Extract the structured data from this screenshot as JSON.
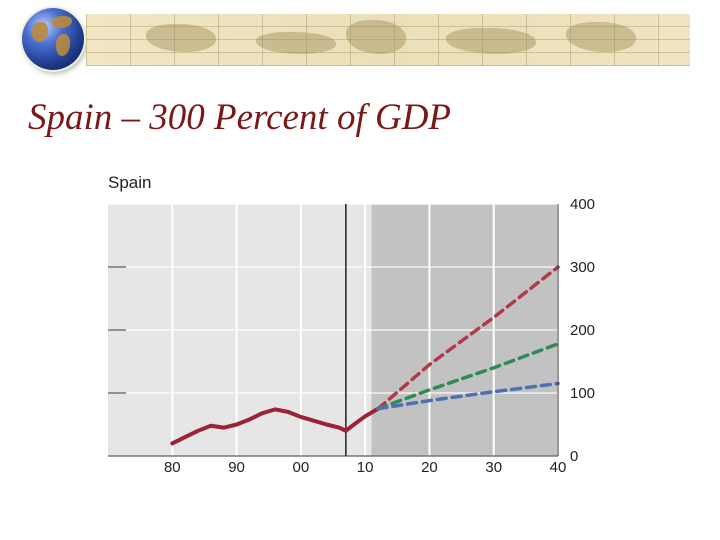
{
  "slide": {
    "title": "Spain – 300 Percent of GDP"
  },
  "header": {
    "icon": "globe-icon",
    "banner": "world-map-banner"
  },
  "chart_data": {
    "type": "line",
    "title": "Spain",
    "xlabel": "",
    "ylabel": "",
    "x_ticks": [
      "80",
      "90",
      "00",
      "10",
      "20",
      "30",
      "40"
    ],
    "x_tick_values": [
      1980,
      1990,
      2000,
      2010,
      2020,
      2030,
      2040
    ],
    "y_ticks": [
      "0",
      "100",
      "200",
      "300",
      "400"
    ],
    "y_tick_values": [
      0,
      100,
      200,
      300,
      400
    ],
    "xlim": [
      1970,
      2040
    ],
    "ylim": [
      0,
      400
    ],
    "y_axis_side": "right",
    "grid": true,
    "vertical_marker_x": 2007,
    "projection_start_x": 2011,
    "colors": {
      "plot_bg": "#e6e6e6",
      "projection_bg": "#c2c2c2",
      "history": "#9b2335",
      "red": "#b03a48",
      "green": "#2e8b57",
      "blue": "#4f6fb0"
    },
    "series": [
      {
        "style": "solid",
        "color": "#9b2335",
        "x": [
          1980,
          1982,
          1984,
          1986,
          1988,
          1990,
          1992,
          1994,
          1996,
          1998,
          2000,
          2002,
          2004,
          2006,
          2007,
          2008,
          2010,
          2012
        ],
        "y": [
          20,
          30,
          40,
          48,
          45,
          50,
          58,
          68,
          74,
          70,
          62,
          56,
          50,
          45,
          40,
          48,
          63,
          75
        ]
      },
      {
        "style": "dashed",
        "color": "#b03a48",
        "x": [
          2012,
          2020,
          2030,
          2040
        ],
        "y": [
          75,
          145,
          220,
          300
        ]
      },
      {
        "style": "dashed",
        "color": "#2e8b57",
        "x": [
          2012,
          2020,
          2030,
          2040
        ],
        "y": [
          75,
          105,
          140,
          178
        ]
      },
      {
        "style": "dashed",
        "color": "#4f6fb0",
        "x": [
          2012,
          2020,
          2030,
          2040
        ],
        "y": [
          75,
          88,
          102,
          115
        ]
      }
    ]
  }
}
